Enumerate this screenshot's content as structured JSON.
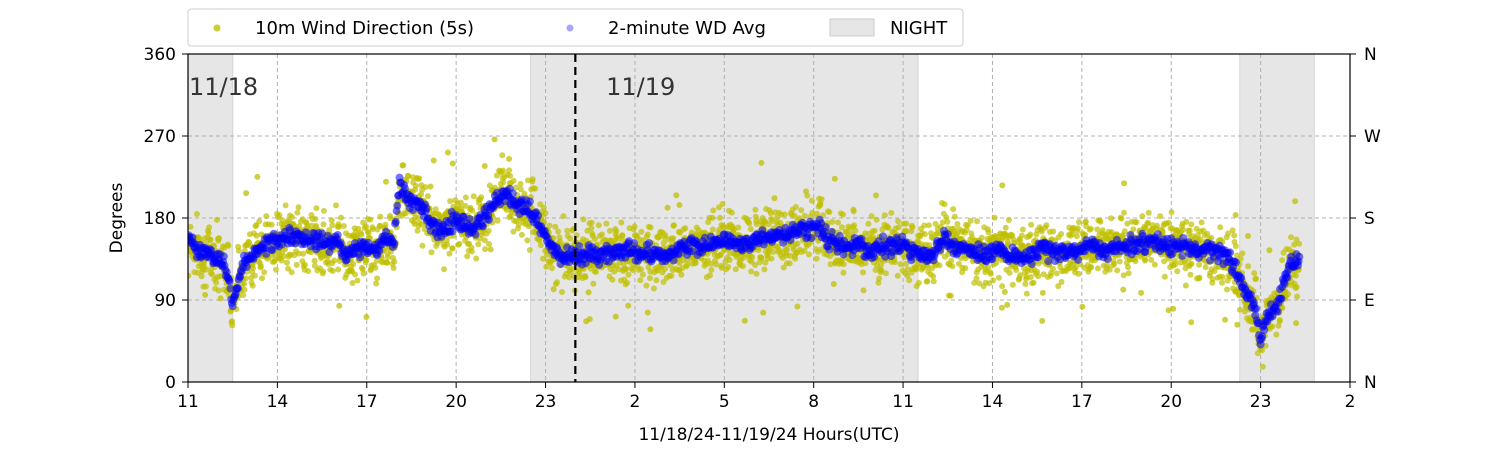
{
  "chart_data": {
    "type": "scatter",
    "xlabel": "11/18/24-11/19/24  Hours(UTC)",
    "ylabel": "Degrees",
    "ylim": [
      0,
      360
    ],
    "xlim": [
      11,
      50
    ],
    "x_ticks": [
      {
        "hour": 11,
        "label": "11"
      },
      {
        "hour": 14,
        "label": "14"
      },
      {
        "hour": 17,
        "label": "17"
      },
      {
        "hour": 20,
        "label": "20"
      },
      {
        "hour": 23,
        "label": "23"
      },
      {
        "hour": 26,
        "label": "2"
      },
      {
        "hour": 29,
        "label": "5"
      },
      {
        "hour": 32,
        "label": "8"
      },
      {
        "hour": 35,
        "label": "11"
      },
      {
        "hour": 38,
        "label": "14"
      },
      {
        "hour": 41,
        "label": "17"
      },
      {
        "hour": 44,
        "label": "20"
      },
      {
        "hour": 47,
        "label": "23"
      },
      {
        "hour": 50,
        "label": "2"
      }
    ],
    "y_ticks": [
      0,
      90,
      180,
      270,
      360
    ],
    "right_ticks": [
      {
        "value": 0,
        "label": "N"
      },
      {
        "value": 90,
        "label": "E"
      },
      {
        "value": 180,
        "label": "S"
      },
      {
        "value": 270,
        "label": "W"
      },
      {
        "value": 360,
        "label": "N"
      }
    ],
    "grid": true,
    "legend_position": "top-left, above plot",
    "legend": [
      {
        "label": "10m Wind Direction (5s)",
        "kind": "marker",
        "color": "#bfbf00"
      },
      {
        "label": "2-minute WD Avg",
        "kind": "marker",
        "color": "#0000ff"
      },
      {
        "label": "NIGHT",
        "kind": "patch",
        "color": "#e0e0e0"
      }
    ],
    "night_periods": [
      [
        11,
        12.5
      ],
      [
        22.5,
        35.5
      ],
      [
        46.3,
        48.8
      ]
    ],
    "midnight_hour": 24,
    "date_labels": [
      {
        "hour": 11,
        "label": "11/18"
      },
      {
        "hour": 25,
        "label": "11/19"
      }
    ],
    "series": [
      {
        "name": "10m Wind Direction (5s)",
        "color": "#bfbf00",
        "spread": 28,
        "note": "dense scatter around the 2-minute average"
      },
      {
        "name": "2-minute WD Avg",
        "color": "#0000ff",
        "points": [
          [
            11.0,
            160
          ],
          [
            11.3,
            145
          ],
          [
            11.7,
            140
          ],
          [
            12.0,
            135
          ],
          [
            12.3,
            125
          ],
          [
            12.5,
            90
          ],
          [
            12.8,
            125
          ],
          [
            13.3,
            145
          ],
          [
            14.0,
            155
          ],
          [
            14.7,
            160
          ],
          [
            15.3,
            155
          ],
          [
            15.7,
            150
          ],
          [
            16.0,
            160
          ],
          [
            16.3,
            140
          ],
          [
            16.7,
            145
          ],
          [
            17.0,
            150
          ],
          [
            17.3,
            140
          ],
          [
            17.6,
            160
          ],
          [
            17.9,
            150
          ],
          [
            18.1,
            215
          ],
          [
            18.4,
            200
          ],
          [
            18.8,
            195
          ],
          [
            19.2,
            170
          ],
          [
            19.6,
            165
          ],
          [
            20.0,
            180
          ],
          [
            20.4,
            170
          ],
          [
            20.8,
            175
          ],
          [
            21.2,
            190
          ],
          [
            21.6,
            210
          ],
          [
            22.0,
            195
          ],
          [
            22.4,
            190
          ],
          [
            22.7,
            180
          ],
          [
            23.0,
            160
          ],
          [
            23.4,
            140
          ],
          [
            23.8,
            135
          ],
          [
            24.3,
            140
          ],
          [
            25.0,
            140
          ],
          [
            25.5,
            145
          ],
          [
            26.3,
            140
          ],
          [
            27.0,
            140
          ],
          [
            27.8,
            150
          ],
          [
            28.5,
            150
          ],
          [
            29.0,
            155
          ],
          [
            29.5,
            150
          ],
          [
            30.0,
            155
          ],
          [
            30.5,
            160
          ],
          [
            31.0,
            160
          ],
          [
            31.5,
            165
          ],
          [
            32.2,
            170
          ],
          [
            32.5,
            155
          ],
          [
            33.0,
            150
          ],
          [
            33.5,
            150
          ],
          [
            34.0,
            145
          ],
          [
            34.5,
            150
          ],
          [
            35.0,
            150
          ],
          [
            35.5,
            140
          ],
          [
            36.0,
            140
          ],
          [
            36.3,
            160
          ],
          [
            36.7,
            150
          ],
          [
            37.2,
            145
          ],
          [
            37.7,
            140
          ],
          [
            38.2,
            145
          ],
          [
            38.7,
            140
          ],
          [
            39.2,
            135
          ],
          [
            39.7,
            145
          ],
          [
            40.2,
            140
          ],
          [
            40.8,
            145
          ],
          [
            41.3,
            150
          ],
          [
            41.8,
            145
          ],
          [
            42.3,
            150
          ],
          [
            42.8,
            150
          ],
          [
            43.3,
            155
          ],
          [
            43.8,
            150
          ],
          [
            44.3,
            150
          ],
          [
            44.8,
            145
          ],
          [
            45.3,
            145
          ],
          [
            45.8,
            140
          ],
          [
            46.2,
            120
          ],
          [
            46.5,
            95
          ],
          [
            46.8,
            85
          ],
          [
            47.0,
            45
          ],
          [
            47.2,
            70
          ],
          [
            47.6,
            85
          ],
          [
            47.8,
            110
          ],
          [
            48.0,
            130
          ],
          [
            48.3,
            135
          ]
        ]
      }
    ]
  },
  "colors": {
    "scatter": "#bfbf00",
    "average": "#0000ff",
    "night": "#e6e6e6",
    "grid": "#b0b0b0"
  }
}
